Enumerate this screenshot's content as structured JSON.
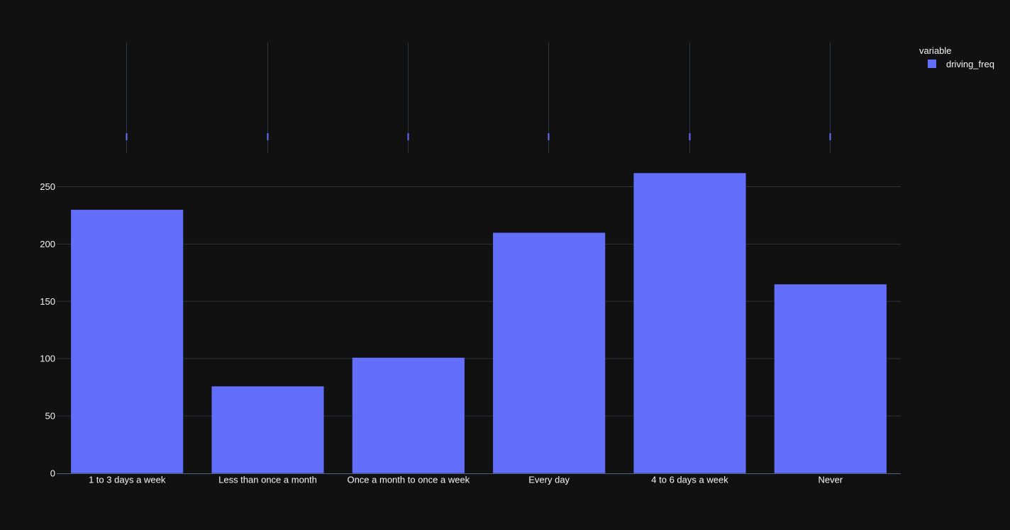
{
  "chart_data": {
    "type": "bar",
    "title": "",
    "xlabel": "",
    "ylabel": "",
    "categories": [
      "1 to 3 days a week",
      "Less than once a month",
      "Once a month to once a week",
      "Every day",
      "4 to 6 days a week",
      "Never"
    ],
    "series": [
      {
        "name": "driving_freq",
        "values": [
          230,
          76,
          101,
          210,
          262,
          165
        ],
        "color": "#636efa"
      }
    ],
    "ylim": [
      0,
      275
    ],
    "yticks": [
      0,
      50,
      100,
      150,
      200,
      250
    ],
    "grid": true,
    "legend": {
      "title": "variable",
      "position": "top-right"
    },
    "marginal": {
      "type": "rug",
      "color": "#636efa"
    }
  },
  "theme": {
    "background": "#111111",
    "grid_color": "#283442",
    "axis_line_color": "#506784",
    "text_color": "#f2f5fa"
  }
}
